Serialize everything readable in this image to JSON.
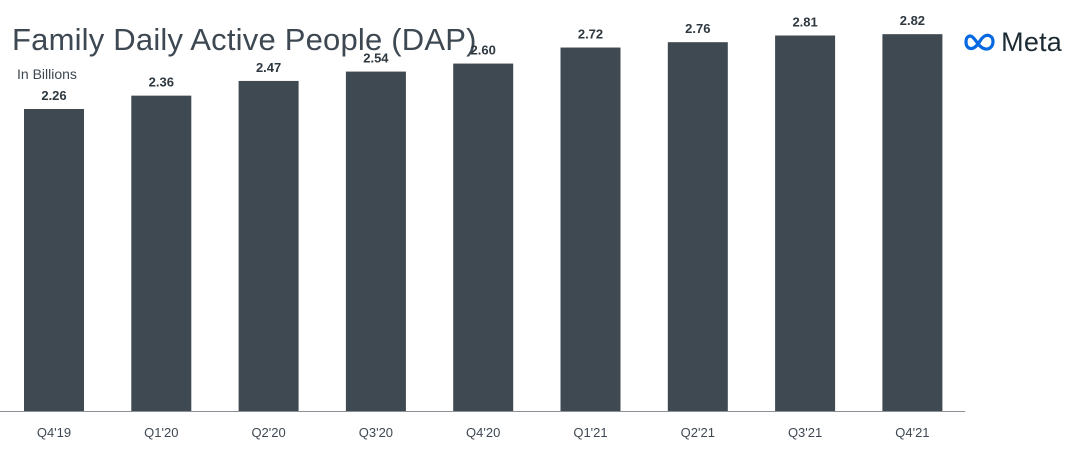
{
  "header": {
    "title": "Family Daily Active People (DAP)",
    "subtitle": "In Billions"
  },
  "brand": {
    "name": "Meta",
    "logo_icon": "meta-infinity-logo",
    "logo_color": "#0668e1"
  },
  "chart_data": {
    "type": "bar",
    "title": "Family Daily Active People (DAP)",
    "subtitle": "In Billions",
    "xlabel": "",
    "ylabel": "",
    "categories": [
      "Q4'19",
      "Q1'20",
      "Q2'20",
      "Q3'20",
      "Q4'20",
      "Q1'21",
      "Q2'21",
      "Q3'21",
      "Q4'21"
    ],
    "values": [
      2.26,
      2.36,
      2.47,
      2.54,
      2.6,
      2.72,
      2.76,
      2.81,
      2.82
    ],
    "value_labels": [
      "2.26",
      "2.36",
      "2.47",
      "2.54",
      "2.60",
      "2.72",
      "2.76",
      "2.81",
      "2.82"
    ],
    "ylim": [
      0,
      3.3
    ],
    "grid": false,
    "legend": "none",
    "bar_color": "#3f4952",
    "axis_color": "#8a9096"
  }
}
